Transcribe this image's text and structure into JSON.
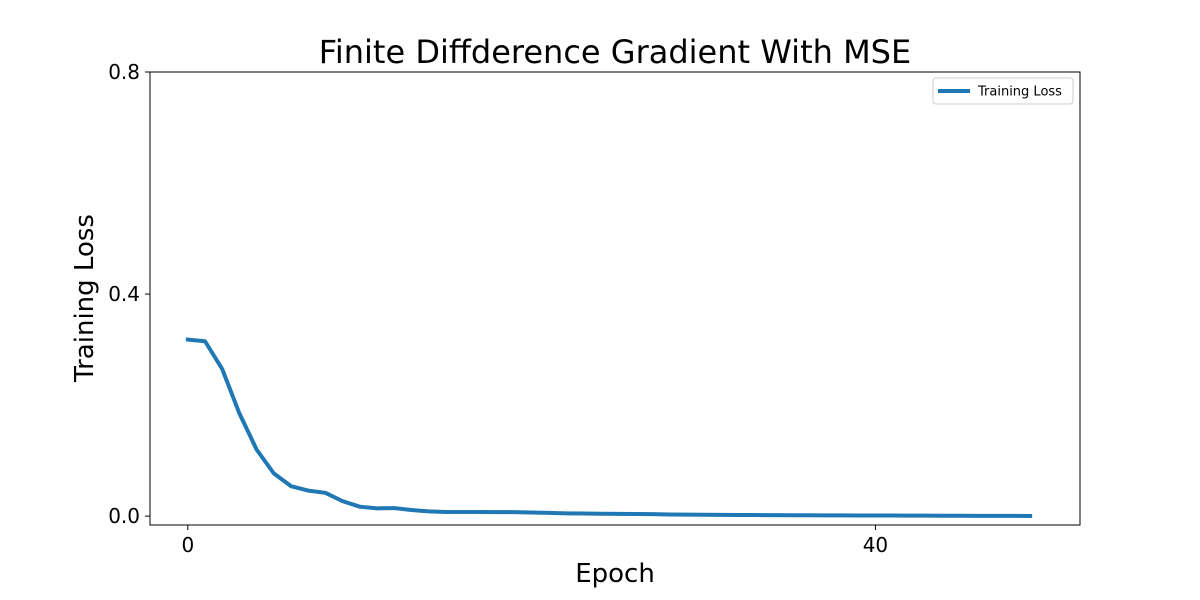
{
  "chart_data": {
    "type": "line",
    "title": "Finite Diffderence Gradient With MSE",
    "xlabel": "Epoch",
    "ylabel": "Training Loss",
    "xlim": [
      -2.2,
      51.9
    ],
    "ylim": [
      -0.016,
      0.8
    ],
    "xticks": [
      0,
      40
    ],
    "xtick_labels": [
      "0",
      "40"
    ],
    "yticks": [
      0.0,
      0.4,
      0.8
    ],
    "ytick_labels": [
      "0.0",
      "0.4",
      "0.8"
    ],
    "grid": false,
    "legend": {
      "position": "top-right",
      "entries": [
        "Training Loss"
      ]
    },
    "series": [
      {
        "name": "Training Loss",
        "color": "#1f77b4",
        "x": [
          0,
          1,
          2,
          3,
          4,
          5,
          6,
          7,
          8,
          9,
          10,
          11,
          12,
          13,
          14,
          15,
          16,
          17,
          18,
          19,
          20,
          21,
          22,
          23,
          24,
          25,
          26,
          27,
          28,
          29,
          30,
          31,
          32,
          33,
          34,
          35,
          36,
          37,
          38,
          39,
          40,
          41,
          42,
          43,
          44,
          45,
          46,
          47,
          48,
          49
        ],
        "values": [
          0.318,
          0.315,
          0.265,
          0.185,
          0.12,
          0.077,
          0.054,
          0.046,
          0.042,
          0.027,
          0.017,
          0.014,
          0.0145,
          0.011,
          0.0085,
          0.0075,
          0.0075,
          0.0075,
          0.0073,
          0.0072,
          0.0066,
          0.0058,
          0.005,
          0.0046,
          0.0043,
          0.0041,
          0.0037,
          0.0035,
          0.003,
          0.0026,
          0.0025,
          0.0022,
          0.002,
          0.0019,
          0.0018,
          0.0016,
          0.0015,
          0.0014,
          0.0013,
          0.0012,
          0.0011,
          0.001,
          0.0009,
          0.0008,
          0.0007,
          0.0006,
          0.0005,
          0.0004,
          0.0004,
          0.0003
        ]
      }
    ]
  }
}
